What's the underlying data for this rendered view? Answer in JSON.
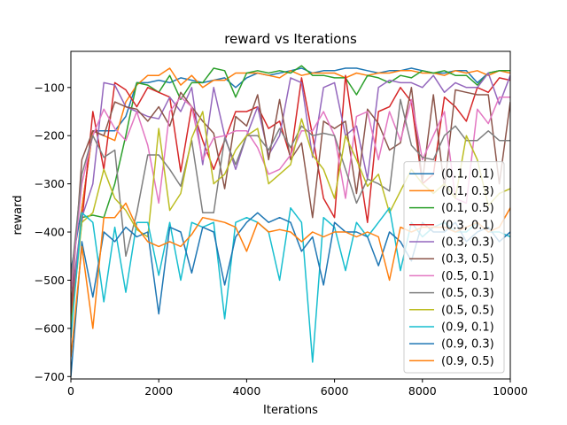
{
  "chart_data": {
    "type": "line",
    "title": "reward vs Iterations",
    "xlabel": "Iterations",
    "ylabel": "reward",
    "xlim": [
      0,
      10000
    ],
    "ylim": [
      -705,
      -25
    ],
    "xticks": [
      0,
      2000,
      4000,
      6000,
      8000,
      10000
    ],
    "yticks": [
      -700,
      -600,
      -500,
      -400,
      -300,
      -200,
      -100
    ],
    "grid": false,
    "legend_position": "lower-right",
    "x": [
      0,
      250,
      500,
      750,
      1000,
      1250,
      1500,
      1750,
      2000,
      2250,
      2500,
      2750,
      3000,
      3250,
      3500,
      3750,
      4000,
      4250,
      4500,
      4750,
      5000,
      5250,
      5500,
      5750,
      6000,
      6250,
      6500,
      6750,
      7000,
      7250,
      7500,
      7750,
      8000,
      8250,
      8500,
      8750,
      9000,
      9250,
      9500,
      9750,
      10000
    ],
    "series": [
      {
        "name": "(0.1, 0.1)",
        "color": "#1f77b4",
        "values": [
          -480,
          -350,
          -190,
          -190,
          -190,
          -160,
          -90,
          -90,
          -85,
          -90,
          -80,
          -85,
          -90,
          -85,
          -80,
          -100,
          -80,
          -70,
          -75,
          -70,
          -65,
          -60,
          -70,
          -65,
          -65,
          -60,
          -60,
          -65,
          -70,
          -65,
          -65,
          -60,
          -65,
          -70,
          -70,
          -65,
          -65,
          -90,
          -70,
          -65,
          -65
        ]
      },
      {
        "name": "(0.1, 0.3)",
        "color": "#ff7f0e",
        "values": [
          -600,
          -350,
          -190,
          -200,
          -210,
          -130,
          -95,
          -75,
          -75,
          -60,
          -95,
          -75,
          -100,
          -85,
          -85,
          -70,
          -70,
          -70,
          -75,
          -80,
          -65,
          -75,
          -70,
          -70,
          -70,
          -80,
          -70,
          -75,
          -70,
          -70,
          -65,
          -65,
          -70,
          -70,
          -75,
          -65,
          -70,
          -65,
          -75,
          -65,
          -70
        ]
      },
      {
        "name": "(0.1, 0.5)",
        "color": "#2ca02c",
        "values": [
          -580,
          -370,
          -365,
          -370,
          -300,
          -200,
          -90,
          -95,
          -110,
          -75,
          -125,
          -90,
          -90,
          -60,
          -65,
          -120,
          -70,
          -65,
          -70,
          -65,
          -70,
          -55,
          -75,
          -75,
          -80,
          -80,
          -115,
          -75,
          -80,
          -90,
          -75,
          -80,
          -65,
          -70,
          -65,
          -75,
          -75,
          -95,
          -70,
          -65,
          -65
        ]
      },
      {
        "name": "(0.3, 0.1)",
        "color": "#d62728",
        "values": [
          -570,
          -380,
          -150,
          -270,
          -90,
          -105,
          -140,
          -100,
          -110,
          -120,
          -275,
          -140,
          -210,
          -270,
          -210,
          -150,
          -150,
          -140,
          -185,
          -170,
          -245,
          -80,
          -200,
          -330,
          -370,
          -75,
          -230,
          -380,
          -150,
          -140,
          -100,
          -130,
          -300,
          -280,
          -120,
          -140,
          -170,
          -100,
          -110,
          -80,
          -85
        ]
      },
      {
        "name": "(0.3, 0.3)",
        "color": "#9467bd",
        "values": [
          -550,
          -370,
          -300,
          -90,
          -95,
          -140,
          -150,
          -160,
          -165,
          -120,
          -150,
          -100,
          -260,
          -100,
          -200,
          -270,
          -200,
          -140,
          -240,
          -200,
          -80,
          -90,
          -245,
          -100,
          -90,
          -200,
          -180,
          -290,
          -100,
          -85,
          -90,
          -90,
          -100,
          -75,
          -110,
          -90,
          -100,
          -100,
          -70,
          -135,
          -75
        ]
      },
      {
        "name": "(0.3, 0.5)",
        "color": "#8c564b",
        "values": [
          -560,
          -250,
          -190,
          -200,
          -130,
          -140,
          -145,
          -170,
          -140,
          -180,
          -110,
          -140,
          -170,
          -195,
          -310,
          -160,
          -180,
          -115,
          -250,
          -125,
          -250,
          -215,
          -370,
          -170,
          -185,
          -170,
          -320,
          -145,
          -175,
          -230,
          -215,
          -100,
          -295,
          -115,
          -310,
          -105,
          -110,
          -115,
          -115,
          -300,
          -130
        ]
      },
      {
        "name": "(0.5, 0.1)",
        "color": "#e377c2",
        "values": [
          -520,
          -300,
          -200,
          -145,
          -185,
          -210,
          -150,
          -220,
          -340,
          -150,
          -120,
          -140,
          -250,
          -205,
          -200,
          -190,
          -190,
          -225,
          -280,
          -270,
          -240,
          -190,
          -190,
          -150,
          -200,
          -330,
          -160,
          -150,
          -250,
          -150,
          -210,
          -125,
          -250,
          -200,
          -150,
          -330,
          -340,
          -145,
          -175,
          -120,
          -120
        ]
      },
      {
        "name": "(0.5, 0.3)",
        "color": "#7f7f7f",
        "values": [
          -500,
          -280,
          -200,
          -245,
          -230,
          -450,
          -360,
          -240,
          -240,
          -270,
          -305,
          -210,
          -360,
          -360,
          -205,
          -260,
          -200,
          -200,
          -230,
          -185,
          -225,
          -180,
          -200,
          -195,
          -200,
          -270,
          -340,
          -290,
          -300,
          -315,
          -125,
          -220,
          -245,
          -250,
          -200,
          -180,
          -210,
          -210,
          -190,
          -210,
          -210
        ]
      },
      {
        "name": "(0.5, 0.5)",
        "color": "#bcbd22",
        "values": [
          -600,
          -380,
          -360,
          -270,
          -330,
          -355,
          -395,
          -410,
          -185,
          -355,
          -320,
          -205,
          -150,
          -300,
          -280,
          -230,
          -200,
          -185,
          -300,
          -280,
          -260,
          -165,
          -240,
          -270,
          -330,
          -200,
          -250,
          -305,
          -280,
          -360,
          -315,
          -270,
          -300,
          -320,
          -300,
          -330,
          -200,
          -250,
          -345,
          -320,
          -310
        ]
      },
      {
        "name": "(0.9, 0.1)",
        "color": "#17becf",
        "values": [
          -620,
          -360,
          -380,
          -545,
          -390,
          -525,
          -380,
          -380,
          -490,
          -380,
          -500,
          -380,
          -390,
          -380,
          -580,
          -380,
          -370,
          -380,
          -400,
          -500,
          -350,
          -380,
          -670,
          -370,
          -390,
          -480,
          -380,
          -410,
          -380,
          -350,
          -480,
          -380,
          -410,
          -390,
          -380,
          -400,
          -400,
          -380,
          -400,
          -400,
          -410
        ]
      },
      {
        "name": "(0.9, 0.3)",
        "color": "#1f77b4",
        "values": [
          -700,
          -420,
          -535,
          -400,
          -420,
          -390,
          -410,
          -400,
          -570,
          -390,
          -400,
          -485,
          -390,
          -400,
          -510,
          -410,
          -380,
          -360,
          -380,
          -370,
          -380,
          -440,
          -410,
          -510,
          -380,
          -400,
          -400,
          -410,
          -470,
          -400,
          -420,
          -460,
          -380,
          -400,
          -400,
          -380,
          -420,
          -400,
          -390,
          -420,
          -400
        ]
      },
      {
        "name": "(0.9, 0.5)",
        "color": "#ff7f0e",
        "values": [
          -660,
          -430,
          -600,
          -370,
          -370,
          -340,
          -390,
          -420,
          -430,
          -420,
          -430,
          -405,
          -370,
          -375,
          -380,
          -390,
          -440,
          -380,
          -400,
          -395,
          -400,
          -420,
          -400,
          -410,
          -400,
          -400,
          -410,
          -400,
          -410,
          -500,
          -390,
          -400,
          -390,
          -390,
          -390,
          -400,
          -390,
          -380,
          -400,
          -390,
          -350
        ]
      }
    ]
  }
}
